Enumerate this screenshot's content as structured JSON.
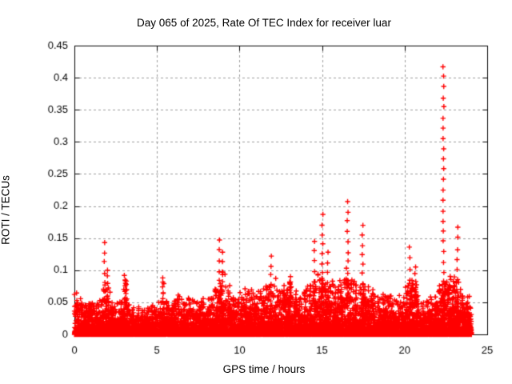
{
  "window": {
    "title": "gnuplot ROTI plot"
  },
  "chart_data": {
    "type": "scatter",
    "title": "Day 065 of 2025, Rate Of TEC Index for receiver luar",
    "xlabel": "GPS time / hours",
    "ylabel": "ROTI / TECUs",
    "xlim": [
      0,
      25
    ],
    "ylim": [
      0,
      0.45
    ],
    "xticks": {
      "values": [
        0,
        5,
        10,
        15,
        20,
        25
      ],
      "labels": [
        "0",
        "5",
        "10",
        "15",
        "20",
        "25"
      ]
    },
    "yticks": {
      "values": [
        0,
        0.05,
        0.1,
        0.15,
        0.2,
        0.25,
        0.3,
        0.35,
        0.4,
        0.45
      ],
      "labels": [
        "0",
        "0.05",
        "0.1",
        "0.15",
        "0.2",
        "0.25",
        "0.3",
        "0.35",
        "0.4",
        "0.45"
      ]
    },
    "grid": true,
    "grid_style": "dashed",
    "legend": "none",
    "marker": "plus-cross",
    "marker_color": "#ff0000",
    "grid_color": "#9b9b9b",
    "axis_color": "#000000",
    "background_color": "#ffffff",
    "series_name": "ROTI",
    "data_extent_hours": [
      0,
      24.05
    ],
    "baseline_envelope": {
      "comment": "upper edge of the dense low-level scatter band, TECUs, sampled every 0.5 h from hour 0 to 24",
      "start_hour": 0,
      "step_hours": 0.5,
      "values": [
        0.075,
        0.045,
        0.05,
        0.05,
        0.07,
        0.05,
        0.06,
        0.045,
        0.045,
        0.04,
        0.05,
        0.05,
        0.055,
        0.065,
        0.055,
        0.05,
        0.06,
        0.065,
        0.1,
        0.07,
        0.065,
        0.07,
        0.07,
        0.08,
        0.09,
        0.08,
        0.085,
        0.065,
        0.07,
        0.09,
        0.1,
        0.08,
        0.08,
        0.11,
        0.08,
        0.09,
        0.07,
        0.06,
        0.065,
        0.055,
        0.065,
        0.09,
        0.055,
        0.06,
        0.065,
        0.09,
        0.09,
        0.07,
        0.06
      ]
    },
    "spikes": {
      "comment": "isolated tall spike columns [hour, peak ROTI in TECUs]",
      "points": [
        [
          1.83,
          0.143
        ],
        [
          2.0,
          0.1
        ],
        [
          3.05,
          0.092
        ],
        [
          3.15,
          0.083
        ],
        [
          5.35,
          0.088
        ],
        [
          8.78,
          0.147
        ],
        [
          8.95,
          0.128
        ],
        [
          11.9,
          0.122
        ],
        [
          13.1,
          0.09
        ],
        [
          14.55,
          0.145
        ],
        [
          15.02,
          0.187
        ],
        [
          15.35,
          0.128
        ],
        [
          16.55,
          0.207
        ],
        [
          17.45,
          0.17
        ],
        [
          20.3,
          0.136
        ],
        [
          20.65,
          0.105
        ],
        [
          22.35,
          0.417
        ],
        [
          23.2,
          0.167
        ]
      ]
    },
    "max_value": 0.417,
    "max_value_hour": 22.35
  }
}
